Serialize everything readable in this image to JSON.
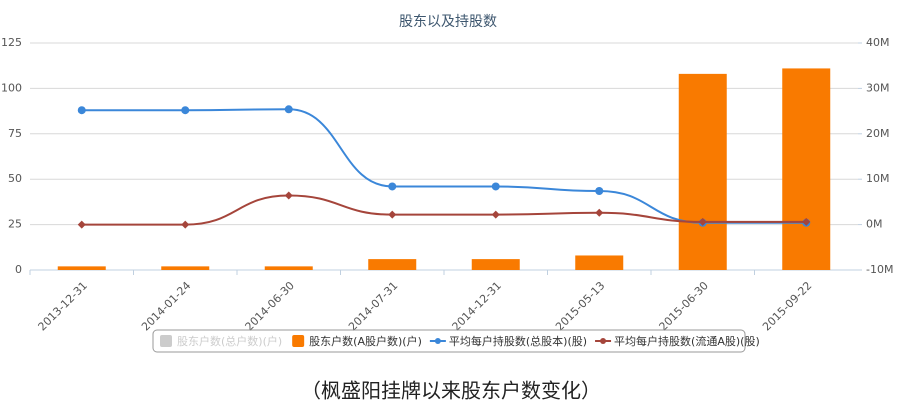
{
  "chart_data": {
    "type": "bar-line",
    "title": "股东以及持股数",
    "categories": [
      "2013-12-31",
      "2014-01-24",
      "2014-06-30",
      "2014-07-31",
      "2014-12-31",
      "2015-05-13",
      "2015-06-30",
      "2015-09-22"
    ],
    "ylim": [
      0,
      125
    ],
    "yticks": [
      0,
      25,
      50,
      75,
      100,
      125
    ],
    "y2lim": [
      -10000000,
      40000000
    ],
    "y2ticks": [
      {
        "value": -10000000,
        "label": "-10M"
      },
      {
        "value": 0,
        "label": "0M"
      },
      {
        "value": 10000000,
        "label": "10M"
      },
      {
        "value": 20000000,
        "label": "20M"
      },
      {
        "value": 30000000,
        "label": "30M"
      },
      {
        "value": 40000000,
        "label": "40M"
      }
    ],
    "grid": true,
    "series": [
      {
        "name": "股东户数(总户数)(户)",
        "type": "bar",
        "color": "#c8c8c8",
        "visible": false,
        "values": [
          null,
          null,
          null,
          null,
          null,
          null,
          null,
          null
        ]
      },
      {
        "name": "股东户数(A股户数)(户)",
        "type": "bar",
        "color": "#f97a00",
        "visible": true,
        "values": [
          2,
          2,
          2,
          6,
          6,
          8,
          108,
          111
        ]
      },
      {
        "name": "平均每户持股数(总股本)(股)",
        "type": "line",
        "axis": "y2",
        "color": "#3b87d9",
        "visible": true,
        "values": [
          25200000,
          25200000,
          25400000,
          8400000,
          8400000,
          7400000,
          400000,
          400000
        ]
      },
      {
        "name": "平均每户持股数(流通A股)(股)",
        "type": "line",
        "axis": "y2",
        "color": "#a5453b",
        "visible": true,
        "values": [
          0,
          0,
          6400000,
          2200000,
          2200000,
          2600000,
          600000,
          600000
        ]
      }
    ],
    "caption": "（枫盛阳挂牌以来股东户数变化）"
  }
}
